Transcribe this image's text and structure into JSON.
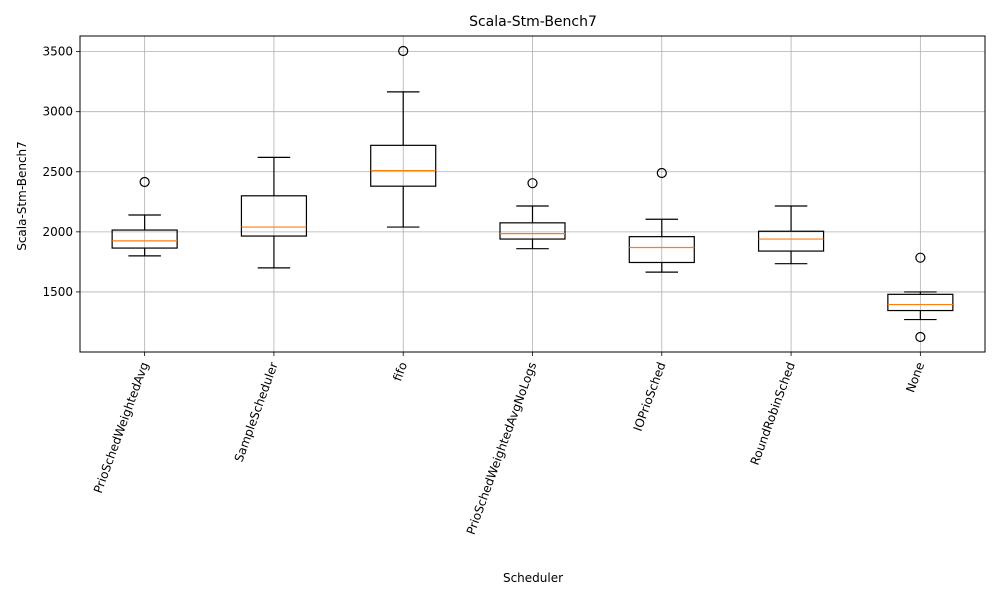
{
  "chart_data": {
    "type": "box",
    "title": "Scala-Stm-Bench7",
    "xlabel": "Scheduler",
    "ylabel": "Scala-Stm-Bench7",
    "ylim": [
      1000,
      3630
    ],
    "yticks": [
      1500,
      2000,
      2500,
      3000,
      3500
    ],
    "grid": true,
    "categories": [
      "PrioSchedWeightedAvg",
      "SampleScheduler",
      "fifo",
      "PrioSchedWeightedAvgNoLogs",
      "IOPrioSched",
      "RoundRobinSched",
      "None"
    ],
    "boxes": [
      {
        "whislo": 1800,
        "q1": 1865,
        "med": 1925,
        "q3": 2015,
        "whishi": 2140,
        "fliers": [
          2415
        ]
      },
      {
        "whislo": 1700,
        "q1": 1965,
        "med": 2040,
        "q3": 2300,
        "whishi": 2620,
        "fliers": []
      },
      {
        "whislo": 2040,
        "q1": 2380,
        "med": 2510,
        "q3": 2720,
        "whishi": 3165,
        "fliers": [
          3505
        ]
      },
      {
        "whislo": 1860,
        "q1": 1940,
        "med": 1985,
        "q3": 2075,
        "whishi": 2215,
        "fliers": [
          2405
        ]
      },
      {
        "whislo": 1665,
        "q1": 1745,
        "med": 1870,
        "q3": 1960,
        "whishi": 2105,
        "fliers": [
          2490
        ]
      },
      {
        "whislo": 1735,
        "q1": 1840,
        "med": 1940,
        "q3": 2005,
        "whishi": 2215,
        "fliers": []
      },
      {
        "whislo": 1270,
        "q1": 1345,
        "med": 1395,
        "q3": 1480,
        "whishi": 1500,
        "fliers": [
          1785,
          1125
        ]
      }
    ],
    "colors": {
      "box": "#000000",
      "median": "#ff7f0e",
      "grid": "#b0b0b0"
    }
  }
}
